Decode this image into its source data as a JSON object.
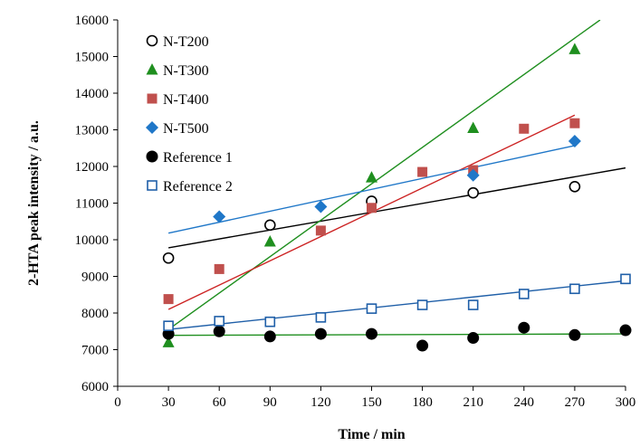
{
  "chart_data": {
    "type": "scatter",
    "title": "",
    "xlabel": "Time / min",
    "ylabel": "2-HTA peak intensity / a.u.",
    "xlim": [
      0,
      300
    ],
    "ylim": [
      6000,
      16000
    ],
    "xticks": [
      0,
      30,
      60,
      90,
      120,
      150,
      180,
      210,
      240,
      270,
      300
    ],
    "yticks": [
      6000,
      7000,
      8000,
      9000,
      10000,
      11000,
      12000,
      13000,
      14000,
      15000,
      16000
    ],
    "grid": false,
    "legend_position": "top-left",
    "series": [
      {
        "name": "N-T200",
        "marker": "circle-open",
        "color": "#000000",
        "x": [
          30,
          90,
          150,
          210,
          270
        ],
        "y": [
          9500,
          10400,
          11050,
          11280,
          11450
        ],
        "trend": {
          "x": [
            30,
            300
          ],
          "y": [
            9780,
            11960
          ],
          "color": "#000000"
        }
      },
      {
        "name": "N-T300",
        "marker": "triangle",
        "color": "#1f8f1f",
        "x": [
          30,
          90,
          150,
          210,
          270
        ],
        "y": [
          7200,
          9950,
          11700,
          13050,
          15200
        ],
        "trend": {
          "x": [
            30,
            285
          ],
          "y": [
            7550,
            16000
          ],
          "color": "#1f8f1f"
        }
      },
      {
        "name": "N-T400",
        "marker": "square",
        "color": "#c0504d",
        "x": [
          30,
          60,
          120,
          150,
          180,
          210,
          240,
          270
        ],
        "y": [
          8380,
          9200,
          10250,
          10870,
          11850,
          11900,
          13030,
          13180
        ],
        "trend": {
          "x": [
            30,
            270
          ],
          "y": [
            8100,
            13400
          ],
          "color": "#cc2222"
        }
      },
      {
        "name": "N-T500",
        "marker": "diamond",
        "color": "#1f77c8",
        "x": [
          60,
          120,
          210,
          270
        ],
        "y": [
          10630,
          10900,
          11760,
          12690
        ],
        "trend": {
          "x": [
            30,
            270
          ],
          "y": [
            10180,
            12570
          ],
          "color": "#1f77c8"
        }
      },
      {
        "name": "Reference 1",
        "marker": "circle-filled",
        "color": "#000000",
        "x": [
          30,
          60,
          90,
          120,
          150,
          180,
          210,
          240,
          270,
          300
        ],
        "y": [
          7430,
          7500,
          7360,
          7430,
          7430,
          7110,
          7320,
          7600,
          7400,
          7530
        ],
        "trend": {
          "x": [
            30,
            300
          ],
          "y": [
            7390,
            7430
          ],
          "color": "#1f8f1f"
        }
      },
      {
        "name": "Reference 2",
        "marker": "square-open",
        "color": "#1f5fa8",
        "x": [
          30,
          60,
          90,
          120,
          150,
          180,
          210,
          240,
          270,
          300
        ],
        "y": [
          7650,
          7780,
          7760,
          7880,
          8120,
          8220,
          8220,
          8520,
          8660,
          8930
        ],
        "trend": {
          "x": [
            30,
            300
          ],
          "y": [
            7550,
            8880
          ],
          "color": "#1f5fa8"
        }
      }
    ]
  }
}
